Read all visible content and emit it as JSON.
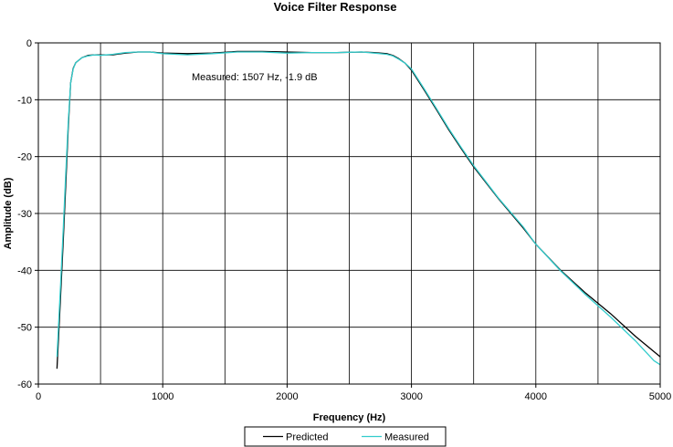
{
  "chart_data": {
    "type": "line",
    "title": "Voice Filter Response",
    "xlabel": "Frequency (Hz)",
    "ylabel": "Amplitude (dB)",
    "xlim": [
      0,
      5000
    ],
    "ylim": [
      -60,
      0
    ],
    "xticks": [
      0,
      1000,
      2000,
      3000,
      4000,
      5000
    ],
    "xtick_labels": [
      "0",
      "1000",
      "2000",
      "3000",
      "4000",
      "5000"
    ],
    "yticks": [
      0,
      -10,
      -20,
      -30,
      -40,
      -50,
      -60
    ],
    "ytick_labels": [
      "0",
      "-10",
      "-20",
      "-30",
      "-40",
      "-50",
      "-60"
    ],
    "x_gridlines": [
      0,
      500,
      1000,
      1500,
      2000,
      2500,
      3000,
      3500,
      4000,
      4500,
      5000
    ],
    "grid": true,
    "legend_position": "bottom-center",
    "annotation": "Measured: 1507 Hz, -1.9 dB",
    "series": [
      {
        "name": "Predicted",
        "color": "#000000",
        "x": [
          150,
          180,
          200,
          220,
          240,
          260,
          280,
          300,
          350,
          400,
          450,
          500,
          600,
          700,
          800,
          900,
          1000,
          1200,
          1400,
          1600,
          1800,
          2000,
          2200,
          2400,
          2600,
          2700,
          2800,
          2850,
          2900,
          2950,
          3000,
          3100,
          3200,
          3300,
          3400,
          3500,
          3700,
          3900,
          4000,
          4200,
          4400,
          4600,
          4800,
          5000
        ],
        "y": [
          -57.3,
          -44,
          -35,
          -25,
          -15,
          -7,
          -4.5,
          -3.5,
          -2.6,
          -2.2,
          -2.1,
          -2.1,
          -2.1,
          -1.8,
          -1.6,
          -1.6,
          -1.8,
          -1.9,
          -1.8,
          -1.5,
          -1.5,
          -1.6,
          -1.7,
          -1.7,
          -1.6,
          -1.7,
          -1.9,
          -2.2,
          -2.8,
          -3.6,
          -4.8,
          -8.2,
          -11.7,
          -15.3,
          -18.6,
          -21.8,
          -27.4,
          -32.6,
          -35.4,
          -40.0,
          -44.0,
          -47.6,
          -51.6,
          -55.2
        ]
      },
      {
        "name": "Measured",
        "color": "#33CCCC",
        "x": [
          150,
          180,
          200,
          220,
          240,
          260,
          280,
          300,
          350,
          400,
          450,
          500,
          600,
          700,
          800,
          900,
          1000,
          1200,
          1400,
          1600,
          1800,
          2000,
          2200,
          2400,
          2600,
          2700,
          2800,
          2850,
          2900,
          2950,
          3000,
          3100,
          3200,
          3300,
          3400,
          3500,
          3700,
          3900,
          4000,
          4200,
          4400,
          4600,
          4800,
          4950,
          5000
        ],
        "y": [
          -55.2,
          -42,
          -33,
          -23,
          -14,
          -7,
          -4.6,
          -3.5,
          -2.6,
          -2.3,
          -2.1,
          -2.2,
          -2.0,
          -1.7,
          -1.6,
          -1.6,
          -1.9,
          -2.1,
          -1.9,
          -1.6,
          -1.6,
          -1.8,
          -1.7,
          -1.7,
          -1.6,
          -1.8,
          -2.0,
          -2.3,
          -2.9,
          -3.6,
          -4.6,
          -8.0,
          -11.5,
          -15.1,
          -18.4,
          -21.6,
          -27.3,
          -32.4,
          -35.4,
          -40.1,
          -44.3,
          -48.2,
          -52.4,
          -55.9,
          -56.6
        ]
      }
    ]
  }
}
